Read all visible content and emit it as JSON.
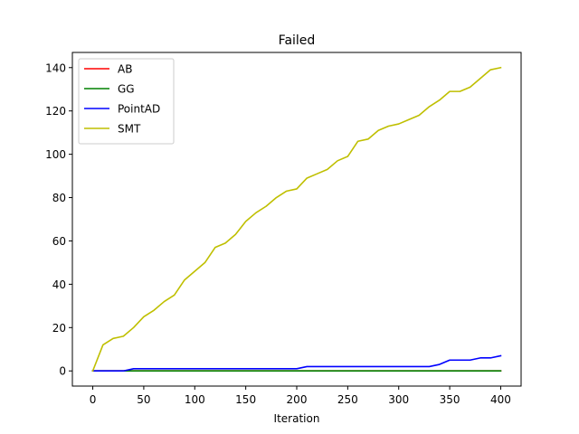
{
  "chart_data": {
    "type": "line",
    "title": "Failed",
    "xlabel": "Iteration",
    "ylabel": "",
    "xlim": [
      -20,
      420
    ],
    "ylim": [
      -7,
      147
    ],
    "x_ticks": [
      0,
      50,
      100,
      150,
      200,
      250,
      300,
      350,
      400
    ],
    "y_ticks": [
      0,
      20,
      40,
      60,
      80,
      100,
      120,
      140
    ],
    "grid": false,
    "legend_position": "top-left",
    "x": [
      0,
      10,
      20,
      30,
      40,
      50,
      60,
      70,
      80,
      90,
      100,
      110,
      120,
      130,
      140,
      150,
      160,
      170,
      180,
      190,
      200,
      210,
      220,
      230,
      240,
      250,
      260,
      270,
      280,
      290,
      300,
      310,
      320,
      330,
      340,
      350,
      360,
      370,
      380,
      390,
      400
    ],
    "series": [
      {
        "name": "AB",
        "color": "#ff0000",
        "values": [
          0,
          0,
          0,
          0,
          0,
          0,
          0,
          0,
          0,
          0,
          0,
          0,
          0,
          0,
          0,
          0,
          0,
          0,
          0,
          0,
          0,
          0,
          0,
          0,
          0,
          0,
          0,
          0,
          0,
          0,
          0,
          0,
          0,
          0,
          0,
          0,
          0,
          0,
          0,
          0,
          0
        ]
      },
      {
        "name": "GG",
        "color": "#008000",
        "values": [
          0,
          0,
          0,
          0,
          0,
          0,
          0,
          0,
          0,
          0,
          0,
          0,
          0,
          0,
          0,
          0,
          0,
          0,
          0,
          0,
          0,
          0,
          0,
          0,
          0,
          0,
          0,
          0,
          0,
          0,
          0,
          0,
          0,
          0,
          0,
          0,
          0,
          0,
          0,
          0,
          0
        ]
      },
      {
        "name": "PointAD",
        "color": "#0000ff",
        "values": [
          0,
          0,
          0,
          0,
          1,
          1,
          1,
          1,
          1,
          1,
          1,
          1,
          1,
          1,
          1,
          1,
          1,
          1,
          1,
          1,
          1,
          2,
          2,
          2,
          2,
          2,
          2,
          2,
          2,
          2,
          2,
          2,
          2,
          2,
          3,
          5,
          5,
          5,
          6,
          6,
          7
        ]
      },
      {
        "name": "SMT",
        "color": "#bfbf00",
        "values": [
          0,
          12,
          15,
          16,
          20,
          25,
          28,
          32,
          35,
          42,
          46,
          50,
          57,
          59,
          63,
          69,
          73,
          76,
          80,
          83,
          84,
          89,
          91,
          93,
          97,
          99,
          106,
          107,
          111,
          113,
          114,
          116,
          118,
          122,
          125,
          129,
          129,
          131,
          135,
          139,
          140
        ]
      }
    ]
  }
}
